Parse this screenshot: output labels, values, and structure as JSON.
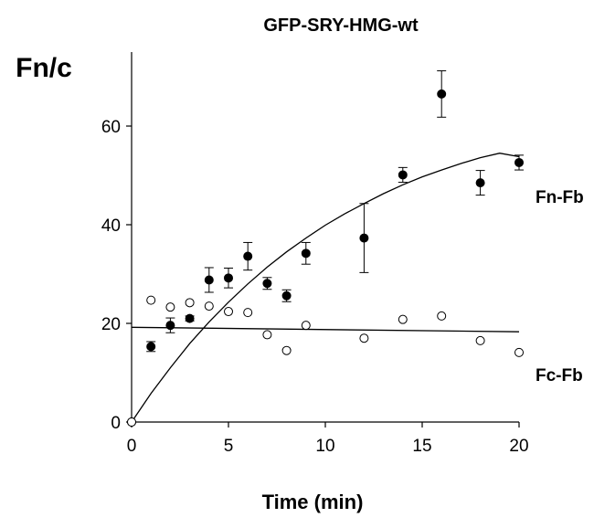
{
  "chart_data": {
    "type": "scatter",
    "title": "GFP-SRY-HMG-wt",
    "ylabel": "Fn/c",
    "xlabel": "Time (min)",
    "xlim": [
      0,
      20
    ],
    "ylim": [
      0,
      75
    ],
    "x_ticks": [
      0,
      5,
      10,
      15,
      20
    ],
    "y_ticks": [
      0,
      20,
      40,
      60
    ],
    "grid": false,
    "series": [
      {
        "name": "Fn-Fb",
        "marker": "filled-circle",
        "points": [
          {
            "x": 0,
            "y": 0
          },
          {
            "x": 1,
            "y": 15.3,
            "err": 1.0
          },
          {
            "x": 2,
            "y": 19.6,
            "err": 1.5
          },
          {
            "x": 3,
            "y": 21.0,
            "err": 0.5
          },
          {
            "x": 4,
            "y": 28.8,
            "err": 2.5
          },
          {
            "x": 5,
            "y": 29.2,
            "err": 2.0
          },
          {
            "x": 6,
            "y": 33.6,
            "err": 2.8
          },
          {
            "x": 7,
            "y": 28.1,
            "err": 1.2
          },
          {
            "x": 8,
            "y": 25.6,
            "err": 1.2
          },
          {
            "x": 9,
            "y": 34.2,
            "err": 2.2
          },
          {
            "x": 12,
            "y": 37.3,
            "err": 7.0
          },
          {
            "x": 14,
            "y": 50.1,
            "err": 1.5
          },
          {
            "x": 16,
            "y": 66.5,
            "err": 4.7
          },
          {
            "x": 18,
            "y": 48.5,
            "err": 2.5
          },
          {
            "x": 20,
            "y": 52.6,
            "err": 1.5
          }
        ],
        "fit": {
          "x": [
            0,
            1,
            2,
            3,
            4,
            5,
            6,
            7,
            8,
            9,
            10,
            11,
            12,
            13,
            14,
            15,
            16,
            17,
            18,
            19,
            20
          ],
          "y": [
            0,
            5.8,
            11.0,
            15.9,
            20.3,
            24.3,
            28.0,
            31.4,
            34.5,
            37.3,
            39.9,
            42.2,
            44.3,
            46.3,
            48.1,
            49.7,
            51.1,
            52.4,
            53.6,
            54.5,
            53.8
          ]
        }
      },
      {
        "name": "Fc-Fb",
        "marker": "open-circle",
        "points": [
          {
            "x": 0,
            "y": 0
          },
          {
            "x": 1,
            "y": 24.7
          },
          {
            "x": 2,
            "y": 23.3
          },
          {
            "x": 3,
            "y": 24.2
          },
          {
            "x": 4,
            "y": 23.5
          },
          {
            "x": 5,
            "y": 22.4
          },
          {
            "x": 6,
            "y": 22.2
          },
          {
            "x": 7,
            "y": 17.7
          },
          {
            "x": 8,
            "y": 14.5
          },
          {
            "x": 9,
            "y": 19.6
          },
          {
            "x": 12,
            "y": 17.0
          },
          {
            "x": 14,
            "y": 20.8
          },
          {
            "x": 16,
            "y": 21.5
          },
          {
            "x": 18,
            "y": 16.5
          },
          {
            "x": 20,
            "y": 14.1
          }
        ],
        "fit": {
          "x": [
            0,
            20
          ],
          "y": [
            19.2,
            18.3
          ]
        }
      }
    ],
    "colors": {
      "ink": "#000000",
      "background": "#ffffff"
    }
  }
}
